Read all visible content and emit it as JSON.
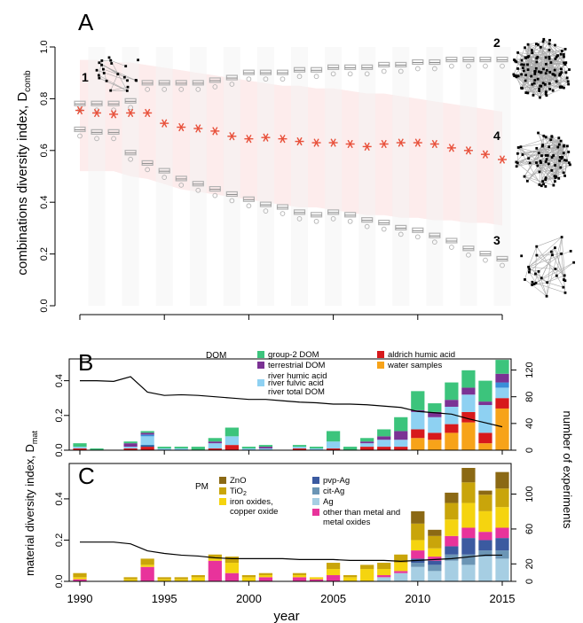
{
  "figure": {
    "year_axis": {
      "label": "year",
      "range": [
        1990,
        2015
      ],
      "ticks": [
        1990,
        1995,
        2000,
        2005,
        2010,
        2015
      ]
    },
    "network_labels": [
      "1",
      "2",
      "3",
      "4"
    ]
  },
  "chart_data": [
    {
      "panel": "A",
      "type": "scatter",
      "ylabel": "combinations diversity index, D",
      "ylabel_sub": "comb",
      "ylim": [
        0,
        1.0
      ],
      "yticks": [
        0.0,
        0.2,
        0.4,
        0.6,
        0.8,
        1.0
      ],
      "x": [
        1990,
        1991,
        1992,
        1993,
        1994,
        1995,
        1996,
        1997,
        1998,
        1999,
        2000,
        2001,
        2002,
        2003,
        2004,
        2005,
        2006,
        2007,
        2008,
        2009,
        2010,
        2011,
        2012,
        2013,
        2014,
        2015
      ],
      "series": [
        {
          "role": "upper-boxes",
          "values": [
            0.78,
            0.78,
            0.78,
            0.79,
            0.86,
            0.86,
            0.86,
            0.86,
            0.87,
            0.88,
            0.9,
            0.9,
            0.9,
            0.91,
            0.91,
            0.92,
            0.92,
            0.92,
            0.93,
            0.93,
            0.94,
            0.94,
            0.95,
            0.95,
            0.95,
            0.95
          ],
          "color": "#b3b3b3"
        },
        {
          "role": "observed",
          "values": [
            0.755,
            0.745,
            0.74,
            0.745,
            0.745,
            0.705,
            0.69,
            0.685,
            0.675,
            0.655,
            0.645,
            0.65,
            0.645,
            0.635,
            0.63,
            0.63,
            0.625,
            0.615,
            0.625,
            0.63,
            0.63,
            0.625,
            0.61,
            0.6,
            0.585,
            0.565
          ],
          "color": "#e8503a"
        },
        {
          "role": "lower-boxes",
          "values": [
            0.68,
            0.67,
            0.67,
            0.59,
            0.55,
            0.52,
            0.49,
            0.47,
            0.45,
            0.43,
            0.41,
            0.39,
            0.38,
            0.36,
            0.35,
            0.36,
            0.35,
            0.33,
            0.32,
            0.3,
            0.29,
            0.27,
            0.25,
            0.22,
            0.2,
            0.18
          ],
          "color": "#b3b3b3"
        }
      ],
      "band_upper": [
        0.95,
        0.95,
        0.94,
        0.94,
        0.93,
        0.92,
        0.91,
        0.9,
        0.89,
        0.88,
        0.87,
        0.86,
        0.85,
        0.85,
        0.84,
        0.84,
        0.83,
        0.82,
        0.82,
        0.81,
        0.8,
        0.79,
        0.78,
        0.77,
        0.76,
        0.75
      ],
      "band_lower": [
        0.52,
        0.52,
        0.52,
        0.5,
        0.49,
        0.47,
        0.45,
        0.44,
        0.43,
        0.42,
        0.41,
        0.4,
        0.39,
        0.38,
        0.38,
        0.37,
        0.36,
        0.35,
        0.35,
        0.34,
        0.34,
        0.33,
        0.33,
        0.32,
        0.32,
        0.31
      ],
      "colors": {
        "band": "#fdecec",
        "star": "#e8503a",
        "box": "#b3b3b3"
      }
    },
    {
      "panel": "B",
      "type": "bar",
      "stacked": true,
      "ylabel": "",
      "ylim": [
        0,
        0.5
      ],
      "yticks": [
        0.0,
        0.2,
        0.4
      ],
      "y2label": "number of experiments",
      "y2lim": [
        0,
        130
      ],
      "y2ticks": [
        0,
        40,
        80,
        120
      ],
      "legend_title": "DOM",
      "categories": [
        1990,
        1991,
        1992,
        1993,
        1994,
        1995,
        1996,
        1997,
        1998,
        1999,
        2000,
        2001,
        2002,
        2003,
        2004,
        2005,
        2006,
        2007,
        2008,
        2009,
        2010,
        2011,
        2012,
        2013,
        2014,
        2015
      ],
      "series": [
        {
          "name": "water samples",
          "color": "#f7a319",
          "values": [
            0,
            0,
            0,
            0,
            0,
            0,
            0,
            0,
            0,
            0,
            0,
            0,
            0,
            0,
            0,
            0,
            0,
            0,
            0,
            0,
            0.07,
            0.06,
            0.1,
            0.16,
            0.04,
            0.24
          ]
        },
        {
          "name": "aldrich humic acid",
          "color": "#d7191c",
          "values": [
            0.01,
            0,
            0,
            0.01,
            0.02,
            0,
            0,
            0,
            0.01,
            0.03,
            0,
            0,
            0,
            0.01,
            0,
            0.01,
            0,
            0.02,
            0.02,
            0.02,
            0.05,
            0.04,
            0.05,
            0.06,
            0.06,
            0.06
          ]
        },
        {
          "name": "river total DOM",
          "color": "#1f5fa0",
          "values": [
            0,
            0,
            0,
            0,
            0.01,
            0,
            0,
            0,
            0,
            0,
            0,
            0,
            0,
            0,
            0,
            0,
            0,
            0,
            0,
            0,
            0,
            0,
            0,
            0,
            0,
            0
          ]
        },
        {
          "name": "river fulvic acid",
          "color": "#8ed1f2",
          "values": [
            0.01,
            0,
            0,
            0.01,
            0.05,
            0.01,
            0.01,
            0,
            0.03,
            0.05,
            0.01,
            0.01,
            0,
            0.01,
            0.01,
            0.04,
            0,
            0.02,
            0.04,
            0.04,
            0.1,
            0.09,
            0.1,
            0.1,
            0.16,
            0.06
          ]
        },
        {
          "name": "river humic acid",
          "color": "#3a8ed8",
          "values": [
            0,
            0,
            0,
            0,
            0.01,
            0,
            0,
            0,
            0,
            0,
            0,
            0,
            0,
            0,
            0,
            0,
            0,
            0,
            0,
            0,
            0,
            0,
            0,
            0,
            0,
            0.03
          ]
        },
        {
          "name": "terrestrial DOM",
          "color": "#7b3294",
          "values": [
            0,
            0,
            0,
            0.02,
            0.01,
            0,
            0,
            0,
            0.01,
            0,
            0,
            0.01,
            0,
            0,
            0,
            0,
            0,
            0.01,
            0.02,
            0.05,
            0.01,
            0.03,
            0.04,
            0.04,
            0.02,
            0.05
          ]
        },
        {
          "name": "group-2 DOM",
          "color": "#3cc47c",
          "values": [
            0.02,
            0.01,
            0,
            0.01,
            0.01,
            0.01,
            0.01,
            0.02,
            0.02,
            0.05,
            0.01,
            0.01,
            0,
            0.01,
            0.01,
            0.06,
            0.02,
            0.02,
            0.04,
            0.08,
            0.11,
            0.05,
            0.1,
            0.1,
            0.12,
            0.08
          ]
        }
      ],
      "line": {
        "name": "number of experiments",
        "values": [
          104,
          104,
          103,
          110,
          87,
          82,
          83,
          82,
          80,
          78,
          76,
          76,
          74,
          72,
          71,
          69,
          69,
          68,
          66,
          64,
          58,
          56,
          54,
          47,
          41,
          35
        ]
      }
    },
    {
      "panel": "C",
      "type": "bar",
      "stacked": true,
      "ylabel": "",
      "ylim": [
        0,
        0.55
      ],
      "yticks": [
        0.0,
        0.2,
        0.4
      ],
      "y2label": "",
      "y2lim": [
        0,
        130
      ],
      "y2ticks": [
        0,
        20,
        60,
        100
      ],
      "legend_title": "PM",
      "categories": [
        1990,
        1991,
        1992,
        1993,
        1994,
        1995,
        1996,
        1997,
        1998,
        1999,
        2000,
        2001,
        2002,
        2003,
        2004,
        2005,
        2006,
        2007,
        2008,
        2009,
        2010,
        2011,
        2012,
        2013,
        2014,
        2015
      ],
      "series": [
        {
          "name": "Ag",
          "color": "#a6cee3",
          "values": [
            0,
            0,
            0,
            0,
            0,
            0,
            0,
            0,
            0,
            0,
            0,
            0,
            0,
            0,
            0,
            0,
            0,
            0,
            0.02,
            0.04,
            0.07,
            0.05,
            0.1,
            0.08,
            0.12,
            0.11
          ]
        },
        {
          "name": "cit-Ag",
          "color": "#6b95b5",
          "values": [
            0,
            0,
            0,
            0,
            0,
            0,
            0,
            0,
            0,
            0,
            0,
            0,
            0,
            0,
            0,
            0,
            0,
            0,
            0,
            0,
            0.02,
            0.03,
            0.03,
            0.05,
            0.03,
            0.04
          ]
        },
        {
          "name": "pvp-Ag",
          "color": "#3b5aa0",
          "values": [
            0,
            0,
            0,
            0,
            0,
            0,
            0,
            0,
            0,
            0,
            0,
            0,
            0,
            0,
            0,
            0,
            0,
            0,
            0,
            0,
            0.02,
            0.02,
            0.04,
            0.08,
            0.05,
            0.06
          ]
        },
        {
          "name": "other than metal and metal oxides",
          "color": "#e8339b",
          "values": [
            0.01,
            0,
            0,
            0,
            0.07,
            0,
            0,
            0,
            0.1,
            0.04,
            0,
            0.02,
            0,
            0.02,
            0.01,
            0.03,
            0,
            0,
            0.01,
            0.01,
            0.04,
            0.02,
            0.05,
            0.05,
            0.04,
            0.05
          ]
        },
        {
          "name": "iron oxides, copper oxide",
          "color": "#f5d40f",
          "values": [
            0.01,
            0,
            0,
            0.01,
            0.01,
            0.01,
            0.01,
            0.02,
            0.01,
            0.05,
            0.02,
            0.01,
            0,
            0.01,
            0.01,
            0.03,
            0.02,
            0.06,
            0.03,
            0.04,
            0.05,
            0.04,
            0.08,
            0.12,
            0.1,
            0.1
          ]
        },
        {
          "name": "TiO2",
          "color": "#c9a50a",
          "values": [
            0.02,
            0,
            0,
            0.01,
            0.03,
            0.01,
            0.01,
            0.01,
            0.02,
            0.03,
            0.01,
            0.01,
            0,
            0.01,
            0,
            0.03,
            0.01,
            0.02,
            0.03,
            0.04,
            0.08,
            0.06,
            0.08,
            0.1,
            0.08,
            0.09
          ]
        },
        {
          "name": "ZnO",
          "color": "#8b6914",
          "values": [
            0,
            0,
            0,
            0,
            0,
            0,
            0,
            0,
            0,
            0,
            0,
            0,
            0,
            0,
            0,
            0,
            0,
            0,
            0,
            0,
            0.06,
            0.03,
            0.05,
            0.07,
            0.02,
            0.08
          ]
        }
      ],
      "line": {
        "name": "number of experiments",
        "values": [
          45,
          45,
          45,
          43,
          35,
          32,
          30,
          29,
          27,
          26,
          26,
          26,
          26,
          25,
          25,
          25,
          24,
          24,
          24,
          23,
          24,
          25,
          26,
          28,
          30,
          30
        ]
      },
      "legend_labels": {
        "ZnO": "ZnO",
        "TiO": "TiO",
        "TiO_sub": "2",
        "iron": "iron oxides,",
        "iron2": "copper oxide",
        "pvp": "pvp-Ag",
        "cit": "cit-Ag",
        "ag": "Ag",
        "other": "other than metal and",
        "other2": "metal oxides"
      }
    }
  ],
  "shared_ylabel": {
    "text": "material diversity index, D",
    "sub": "mat"
  },
  "legend_B_labels": {
    "g2": "group-2 DOM",
    "terr": "terrestrial DOM",
    "rha": "river humic acid",
    "rfa": "river fulvic acid",
    "rtd": "river total DOM",
    "aha": "aldrich humic acid",
    "ws": "water samples"
  }
}
